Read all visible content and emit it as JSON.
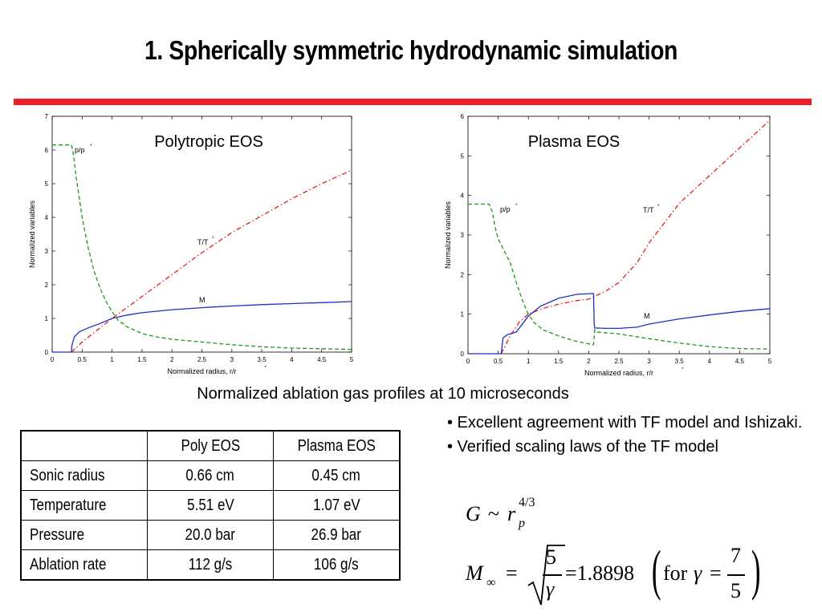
{
  "title": "1. Spherically symmetric hydrodynamic simulation",
  "colors": {
    "accent_bar": "#ee1c25",
    "rho": "#1a9a1a",
    "temp": "#e02020",
    "mach": "#1f2fbf"
  },
  "caption": "Normalized ablation gas profiles at 10 microseconds",
  "chart_data": [
    {
      "type": "line",
      "title": "Polytropic EOS",
      "xlabel": "Normalized radius,  r/r*",
      "ylabel": "Normalized variables",
      "xlim": [
        0,
        5
      ],
      "ylim": [
        0,
        7
      ],
      "xticks": [
        "0",
        "0.5",
        "1",
        "1.5",
        "2",
        "2.5",
        "3",
        "3.5",
        "4",
        "4.5",
        "5"
      ],
      "yticks": [
        "0",
        "1",
        "2",
        "3",
        "4",
        "5",
        "6",
        "7"
      ],
      "series": [
        {
          "name": "p/p*",
          "style": "dashed",
          "color": "#1a9a1a",
          "x": [
            0,
            0.32,
            0.33,
            0.36,
            0.4,
            0.45,
            0.5,
            0.6,
            0.7,
            0.8,
            0.9,
            1.0,
            1.1,
            1.25,
            1.5,
            1.75,
            2.0,
            2.5,
            3.0,
            3.5,
            4.0,
            4.5,
            5.0
          ],
          "y": [
            6.15,
            6.15,
            6.1,
            5.8,
            5.2,
            4.6,
            4.0,
            3.1,
            2.4,
            1.9,
            1.5,
            1.2,
            0.95,
            0.75,
            0.55,
            0.45,
            0.38,
            0.3,
            0.22,
            0.16,
            0.12,
            0.1,
            0.08
          ]
        },
        {
          "name": "T/T*",
          "style": "dashdot",
          "color": "#e02020",
          "x": [
            0.32,
            0.5,
            0.75,
            1.0,
            1.5,
            2.0,
            2.5,
            3.0,
            3.5,
            4.0,
            4.5,
            5.0
          ],
          "y": [
            0.0,
            0.3,
            0.65,
            1.0,
            1.65,
            2.3,
            2.95,
            3.55,
            4.05,
            4.55,
            5.0,
            5.4
          ]
        },
        {
          "name": "M",
          "style": "solid",
          "color": "#1f2fbf",
          "x": [
            0,
            0.32,
            0.33,
            0.37,
            0.45,
            0.6,
            0.8,
            1.0,
            1.25,
            1.5,
            2.0,
            2.5,
            3.0,
            3.5,
            4.0,
            4.5,
            5.0
          ],
          "y": [
            0,
            0,
            0.2,
            0.45,
            0.6,
            0.72,
            0.85,
            1.0,
            1.1,
            1.17,
            1.26,
            1.32,
            1.37,
            1.41,
            1.44,
            1.47,
            1.5
          ]
        }
      ]
    },
    {
      "type": "line",
      "title": "Plasma EOS",
      "xlabel": "Normalized radius,  r/r*",
      "ylabel": "Normalized variables",
      "xlim": [
        0,
        5
      ],
      "ylim": [
        0,
        6
      ],
      "xticks": [
        "0",
        "0.5",
        "1",
        "1.5",
        "2",
        "2.5",
        "3",
        "3.5",
        "4",
        "4.5",
        "5"
      ],
      "yticks": [
        "0",
        "1",
        "2",
        "3",
        "4",
        "5",
        "6"
      ],
      "series": [
        {
          "name": "p/p*",
          "style": "dashed",
          "color": "#1a9a1a",
          "x": [
            0,
            0.35,
            0.4,
            0.45,
            0.5,
            0.55,
            0.6,
            0.7,
            0.8,
            0.9,
            1.0,
            1.1,
            1.25,
            1.5,
            1.75,
            2.0,
            2.08,
            2.1,
            2.12,
            2.5,
            3.0,
            3.5,
            4.0,
            4.5,
            5.0
          ],
          "y": [
            3.78,
            3.78,
            3.6,
            3.2,
            2.9,
            2.75,
            2.6,
            2.3,
            1.8,
            1.35,
            1.0,
            0.78,
            0.6,
            0.45,
            0.33,
            0.25,
            0.23,
            0.6,
            0.55,
            0.5,
            0.38,
            0.27,
            0.18,
            0.13,
            0.12
          ]
        },
        {
          "name": "T/T*",
          "style": "dashdot",
          "color": "#e02020",
          "x": [
            0.55,
            0.7,
            0.85,
            1.0,
            1.25,
            1.5,
            1.75,
            2.0,
            2.1,
            2.3,
            2.5,
            2.8,
            3.0,
            3.3,
            3.5,
            4.0,
            4.5,
            5.0
          ],
          "y": [
            0.0,
            0.45,
            0.8,
            1.0,
            1.15,
            1.25,
            1.33,
            1.38,
            1.45,
            1.6,
            1.8,
            2.3,
            2.8,
            3.4,
            3.8,
            4.5,
            5.2,
            5.9
          ]
        },
        {
          "name": "M",
          "style": "solid",
          "color": "#1f2fbf",
          "x": [
            0,
            0.55,
            0.58,
            0.65,
            0.8,
            1.0,
            1.2,
            1.5,
            1.8,
            2.05,
            2.08,
            2.09,
            2.1,
            2.3,
            2.5,
            2.8,
            3.0,
            3.5,
            4.0,
            4.5,
            5.0
          ],
          "y": [
            0,
            0,
            0.4,
            0.48,
            0.55,
            0.95,
            1.2,
            1.4,
            1.5,
            1.52,
            1.52,
            0.75,
            0.65,
            0.64,
            0.64,
            0.67,
            0.75,
            0.88,
            0.98,
            1.07,
            1.14
          ]
        }
      ]
    }
  ],
  "chart_labels": {
    "left": {
      "title": "Polytropic EOS",
      "rho": "p/p",
      "temp": "T/T",
      "mach": "M",
      "star": "*"
    },
    "right": {
      "title": "Plasma EOS",
      "rho": "p/p",
      "temp": "T/T",
      "mach": "M",
      "star": "*"
    }
  },
  "table": {
    "headers": [
      "",
      "Poly EOS",
      "Plasma EOS"
    ],
    "rows": [
      [
        "Sonic radius",
        "0.66 cm",
        "0.45 cm"
      ],
      [
        "Temperature",
        "5.51 eV",
        "1.07 eV"
      ],
      [
        "Pressure",
        "20.0 bar",
        "26.9 bar"
      ],
      [
        "Ablation rate",
        "112 g/s",
        "106 g/s"
      ]
    ]
  },
  "bullets": [
    "• Excellent agreement with TF model and Ishizaki.",
    "• Verified scaling laws of the TF model"
  ],
  "eq1": {
    "G": "G",
    "tilde": "~",
    "r": "r",
    "exp": "4/3",
    "sub": "p"
  },
  "eq2": {
    "M": "M",
    "inf": "∞",
    "eq": "=",
    "five": "5",
    "gamma": "γ",
    "value": "=1.8898",
    "for": "for",
    "gamma2": "γ",
    "eq2": "=",
    "seven": "7",
    "five2": "5"
  }
}
